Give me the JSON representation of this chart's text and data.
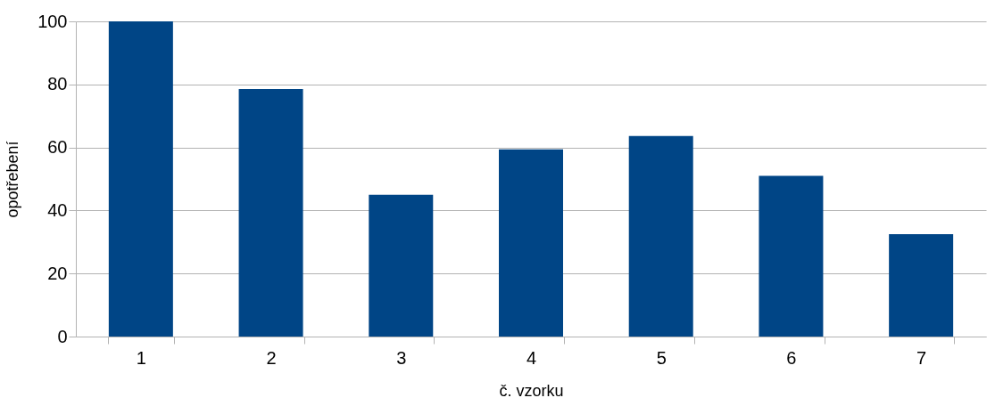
{
  "chart_data": {
    "type": "bar",
    "xlabel": "č. vzorku",
    "ylabel": "opotřebení",
    "categories": [
      "1",
      "2",
      "3",
      "4",
      "5",
      "6",
      "7"
    ],
    "series": [
      {
        "color": "#004586",
        "values": [
          100,
          78.5,
          45,
          59.4,
          63.6,
          51,
          32.5
        ]
      }
    ],
    "ylim": [
      0,
      100
    ],
    "yticks": [
      0,
      20,
      40,
      60,
      80,
      100
    ],
    "grid": "y"
  }
}
